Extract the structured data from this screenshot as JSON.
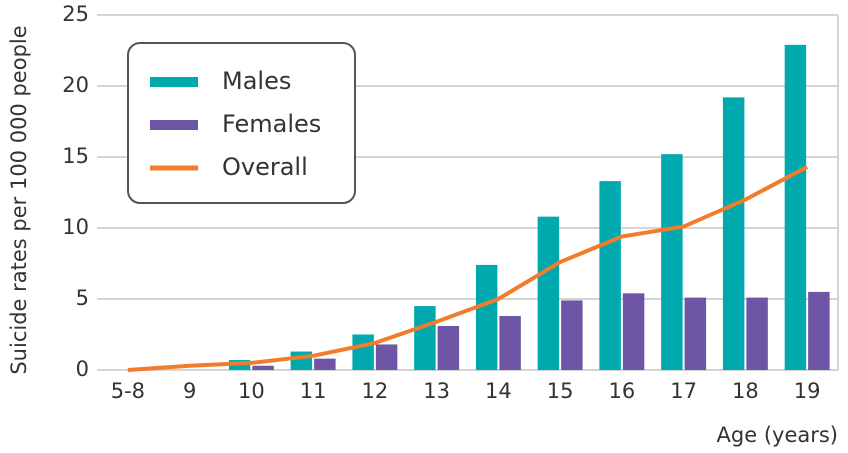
{
  "chart_data": {
    "type": "bar-line",
    "y_label": "Suicide rates per 100 000 people",
    "x_label": "Age (years)",
    "categories": [
      "5-8",
      "9",
      "10",
      "11",
      "12",
      "13",
      "14",
      "15",
      "16",
      "17",
      "18",
      "19"
    ],
    "series": [
      {
        "name": "Males",
        "color": "#00a9ad",
        "kind": "bar",
        "values": [
          null,
          null,
          0.7,
          1.3,
          2.5,
          4.5,
          7.4,
          10.8,
          13.3,
          15.2,
          19.2,
          22.9
        ]
      },
      {
        "name": "Females",
        "color": "#6e55a6",
        "kind": "bar",
        "values": [
          null,
          null,
          0.3,
          0.8,
          1.8,
          3.1,
          3.8,
          4.9,
          5.4,
          5.1,
          5.1,
          5.5
        ]
      },
      {
        "name": "Overall",
        "color": "#f07c2c",
        "kind": "line",
        "values": [
          0,
          0.3,
          0.5,
          1.0,
          1.9,
          3.4,
          5.0,
          7.6,
          9.4,
          10.1,
          12.0,
          14.3
        ]
      }
    ],
    "ylim": [
      0,
      25
    ],
    "yticks": [
      0,
      5,
      10,
      15,
      20,
      25
    ],
    "grid": true
  }
}
